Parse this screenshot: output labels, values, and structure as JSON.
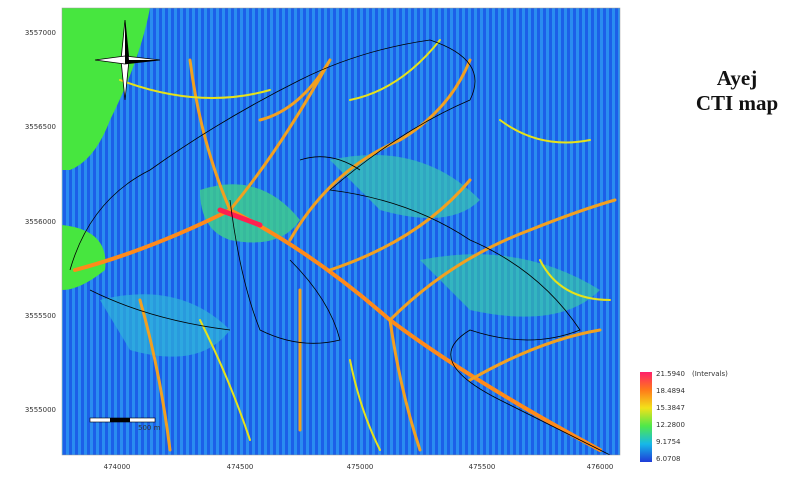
{
  "map": {
    "title": "Ayej",
    "subtitle": "CTI map",
    "x_labels": [
      "474000",
      "474500",
      "475000",
      "475500",
      "476000"
    ],
    "y_labels": [
      "3557000",
      "3556500",
      "3556000",
      "3555500",
      "3555000"
    ],
    "legend": {
      "unit": "(Intervals)",
      "values": [
        "21.5940",
        "18.4894",
        "15.3847",
        "12.2800",
        "9.1754",
        "6.0708"
      ]
    },
    "scale_label": "500 m"
  }
}
